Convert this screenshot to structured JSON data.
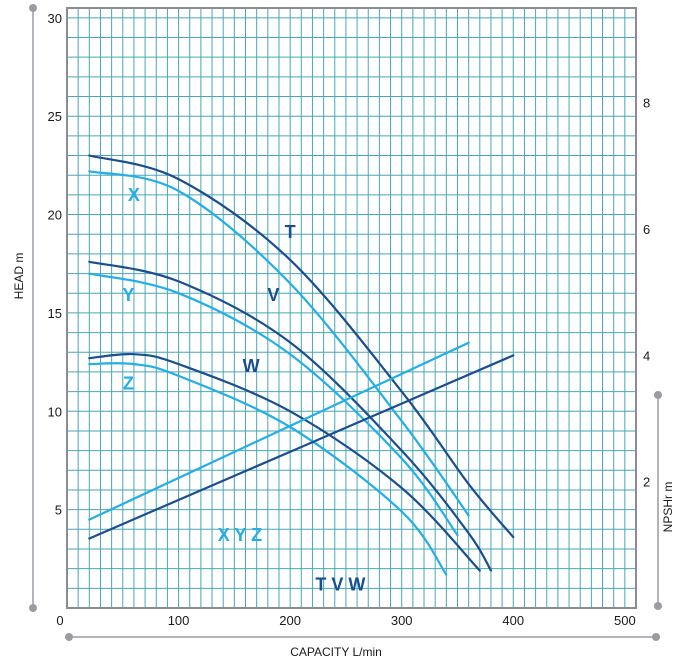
{
  "colors": {
    "grid": "#4aa6b8",
    "frame": "#8a8d93",
    "dark_series": "#1a4e8f",
    "light_series": "#22aee6",
    "ruler": "#9a9ca3"
  },
  "chart_data": {
    "type": "line",
    "xlabel": "CAPACITY  L/min",
    "ylabel": "HEAD  m",
    "y2label": "NPSHr  m",
    "xlim": [
      0,
      510
    ],
    "ylim": [
      0,
      30.5
    ],
    "y2lim": [
      0,
      9.5
    ],
    "x_ticks": [
      "0",
      "100",
      "200",
      "300",
      "400",
      "500"
    ],
    "y_ticks": [
      "5",
      "10",
      "15",
      "20",
      "25",
      "30"
    ],
    "y2_ticks": [
      "2",
      "4",
      "6",
      "8"
    ],
    "grid": true,
    "series": [
      {
        "label": "T",
        "group": "dark",
        "x": [
          20,
          100,
          200,
          300,
          360,
          400
        ],
        "y": [
          23.0,
          21.8,
          17.7,
          11.0,
          6.3,
          3.6
        ]
      },
      {
        "label": "X",
        "group": "light",
        "x": [
          20,
          100,
          200,
          300,
          360
        ],
        "y": [
          22.2,
          21.2,
          16.5,
          9.5,
          4.7
        ]
      },
      {
        "label": "V",
        "group": "dark",
        "x": [
          20,
          100,
          200,
          300,
          360,
          380
        ],
        "y": [
          17.6,
          16.6,
          13.5,
          8.0,
          3.8,
          1.9
        ]
      },
      {
        "label": "Y",
        "group": "light",
        "x": [
          20,
          100,
          200,
          300,
          350
        ],
        "y": [
          17.0,
          16.0,
          12.9,
          7.6,
          3.7
        ]
      },
      {
        "label": "W",
        "group": "dark",
        "x": [
          20,
          60,
          100,
          200,
          300,
          370
        ],
        "y": [
          12.7,
          12.9,
          12.4,
          10.0,
          6.1,
          1.9
        ]
      },
      {
        "label": "Z",
        "group": "light",
        "x": [
          20,
          60,
          100,
          200,
          300,
          340
        ],
        "y": [
          12.4,
          12.4,
          11.8,
          9.2,
          4.9,
          1.7
        ]
      }
    ],
    "npsh_series": [
      {
        "label": "X Y Z",
        "group": "light",
        "x": [
          20,
          360
        ],
        "y": [
          1.4,
          4.2
        ]
      },
      {
        "label": "T V W",
        "group": "dark",
        "x": [
          20,
          400
        ],
        "y": [
          1.1,
          4.0
        ]
      }
    ],
    "curve_labels": [
      {
        "text": "T",
        "group": "dark",
        "x": 200,
        "y": 18.8
      },
      {
        "text": "V",
        "group": "dark",
        "x": 185,
        "y": 15.6
      },
      {
        "text": "W",
        "group": "dark",
        "x": 165,
        "y": 12.0
      },
      {
        "text": "X",
        "group": "light",
        "x": 60,
        "y": 20.7
      },
      {
        "text": "Y",
        "group": "light",
        "x": 55,
        "y": 15.6
      },
      {
        "text": "Z",
        "group": "light",
        "x": 55,
        "y": 11.1
      },
      {
        "text": "X Y Z",
        "group": "light",
        "x": 155,
        "y": 3.4
      },
      {
        "text": "T V W",
        "group": "dark",
        "x": 245,
        "y": 0.9
      }
    ]
  }
}
